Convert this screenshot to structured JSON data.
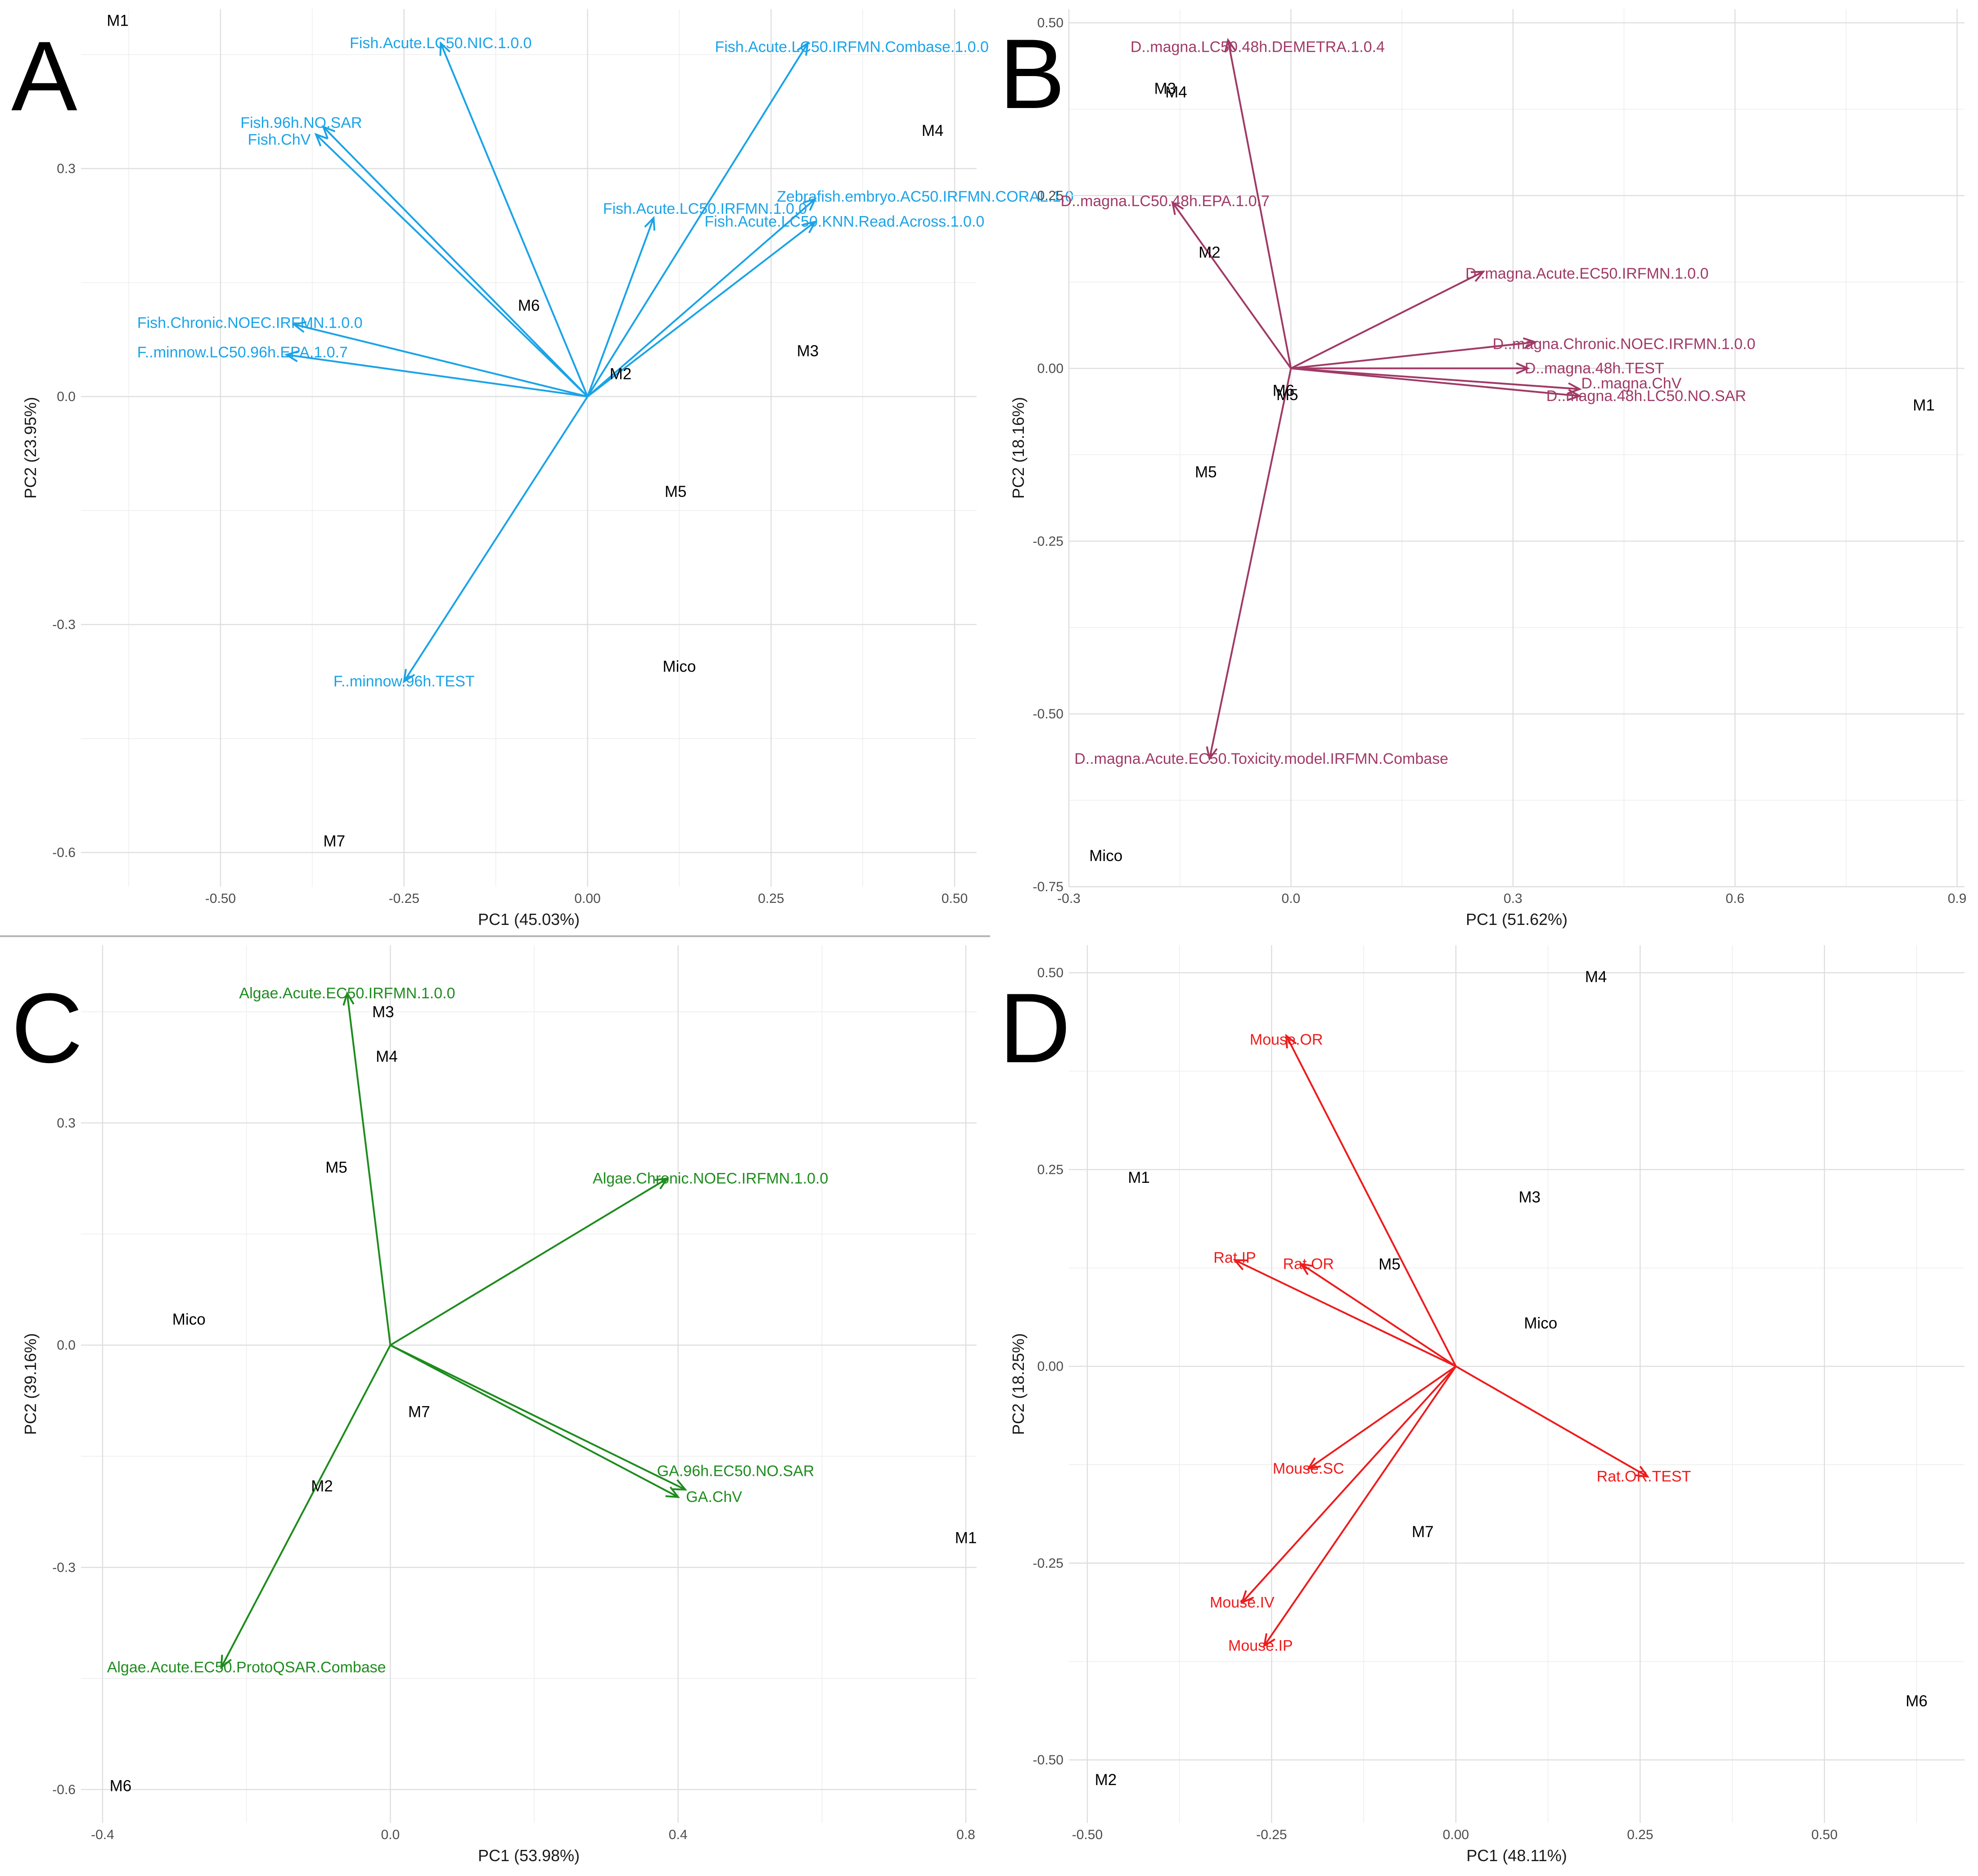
{
  "chart_data": [
    {
      "type": "scatter",
      "panel_label": "A",
      "xlabel": "PC1 (45.03%)",
      "ylabel": "PC2 (23.95%)",
      "xlim": [
        -0.69,
        0.53
      ],
      "ylim": [
        -0.645,
        0.51
      ],
      "xticks": [
        -0.5,
        -0.25,
        0.0,
        0.25,
        0.5
      ],
      "xtick_labels": [
        "-0.50",
        "-0.25",
        "0.00",
        "0.25",
        "0.50"
      ],
      "yticks": [
        -0.6,
        -0.3,
        0.0,
        0.3
      ],
      "ytick_labels": [
        "-0.6",
        "-0.3",
        "0.0",
        "0.3"
      ],
      "color": "#1aa3e8",
      "points": [
        {
          "label": "M1",
          "x": -0.64,
          "y": 0.495
        },
        {
          "label": "M4",
          "x": 0.47,
          "y": 0.35
        },
        {
          "label": "M6",
          "x": -0.08,
          "y": 0.12
        },
        {
          "label": "M2",
          "x": 0.045,
          "y": 0.03
        },
        {
          "label": "M3",
          "x": 0.3,
          "y": 0.06
        },
        {
          "label": "M5",
          "x": 0.12,
          "y": -0.125
        },
        {
          "label": "Mico",
          "x": 0.125,
          "y": -0.355
        },
        {
          "label": "M7",
          "x": -0.345,
          "y": -0.585
        }
      ],
      "arrows": [
        {
          "label": "Fish.Acute.LC50.NIC.1.0.0",
          "x": -0.2,
          "y": 0.465,
          "label_x": -0.2,
          "label_y": 0.465
        },
        {
          "label": "Fish.Acute.LC50.IRFMN.Combase.1.0.0",
          "x": 0.3,
          "y": 0.465,
          "label_x": 0.36,
          "label_y": 0.46
        },
        {
          "label": "Fish.96h.NO.SAR",
          "x": -0.36,
          "y": 0.355,
          "label_x": -0.39,
          "label_y": 0.36
        },
        {
          "label": "Fish.ChV",
          "x": -0.37,
          "y": 0.345,
          "label_x": -0.42,
          "label_y": 0.338
        },
        {
          "label": "Zebrafish.embryo.AC50.IRFMN.CORAL.1.0",
          "x": 0.31,
          "y": 0.26,
          "label_x": 0.46,
          "label_y": 0.263
        },
        {
          "label": "Fish.Acute.LC50.IRFMN.1.0.0",
          "x": 0.09,
          "y": 0.235,
          "label_x": 0.16,
          "label_y": 0.247
        },
        {
          "label": "Fish.Acute.LC50.KNN.Read.Across.1.0.0",
          "x": 0.31,
          "y": 0.23,
          "label_x": 0.35,
          "label_y": 0.23
        },
        {
          "label": "Fish.Chronic.NOEC.IRFMN.1.0.0",
          "x": -0.4,
          "y": 0.095,
          "label_x": -0.46,
          "label_y": 0.097
        },
        {
          "label": "F..minnow.LC50.96h.EPA.1.0.7",
          "x": -0.41,
          "y": 0.055,
          "label_x": -0.47,
          "label_y": 0.058
        },
        {
          "label": "F..minnow.96h.TEST",
          "x": -0.25,
          "y": -0.375,
          "label_x": -0.25,
          "label_y": -0.375
        }
      ]
    },
    {
      "type": "scatter",
      "panel_label": "B",
      "xlabel": "PC1 (51.62%)",
      "ylabel": "PC2 (18.16%)",
      "xlim": [
        -0.3,
        0.91
      ],
      "ylim": [
        -0.75,
        0.52
      ],
      "xticks": [
        -0.3,
        0.0,
        0.3,
        0.6,
        0.9
      ],
      "xtick_labels": [
        "-0.3",
        "0.0",
        "0.3",
        "0.6",
        "0.9"
      ],
      "yticks": [
        -0.75,
        -0.5,
        -0.25,
        0.0,
        0.25,
        0.5
      ],
      "ytick_labels": [
        "-0.75",
        "-0.50",
        "-0.25",
        "0.00",
        "0.25",
        "0.50"
      ],
      "color": "#a03a66",
      "points": [
        {
          "label": "M3",
          "x": -0.17,
          "y": 0.405
        },
        {
          "label": "M4",
          "x": -0.155,
          "y": 0.4
        },
        {
          "label": "M2",
          "x": -0.11,
          "y": 0.168
        },
        {
          "label": "M6",
          "x": -0.01,
          "y": -0.032
        },
        {
          "label": "M5",
          "x": -0.005,
          "y": -0.038
        },
        {
          "label": "M5",
          "x": -0.115,
          "y": -0.15
        },
        {
          "label": "M1",
          "x": 0.855,
          "y": -0.053
        },
        {
          "label": "Mico",
          "x": -0.25,
          "y": -0.705
        }
      ],
      "arrows": [
        {
          "label": "D..magna.LC50.48h.DEMETRA.1.0.4",
          "x": -0.085,
          "y": 0.475,
          "label_x": -0.045,
          "label_y": 0.465
        },
        {
          "label": "D..magna.LC50.48h.EPA.1.0.7",
          "x": -0.16,
          "y": 0.24,
          "label_x": -0.17,
          "label_y": 0.242
        },
        {
          "label": "D..magna.Acute.EC50.IRFMN.1.0.0",
          "x": 0.26,
          "y": 0.14,
          "label_x": 0.4,
          "label_y": 0.137
        },
        {
          "label": "D..magna.Chronic.NOEC.IRFMN.1.0.0",
          "x": 0.33,
          "y": 0.038,
          "label_x": 0.45,
          "label_y": 0.035
        },
        {
          "label": "D..magna.48h.TEST",
          "x": 0.32,
          "y": 0.0,
          "label_x": 0.41,
          "label_y": 0.0
        },
        {
          "label": "D..magna.ChV",
          "x": 0.39,
          "y": -0.03,
          "label_x": 0.46,
          "label_y": -0.022
        },
        {
          "label": "D..magna.48h.LC50.NO.SAR",
          "x": 0.39,
          "y": -0.04,
          "label_x": 0.48,
          "label_y": -0.04
        },
        {
          "label": "D..magna.Acute.EC50.Toxicity.model.IRFMN.Combase",
          "x": -0.11,
          "y": -0.565,
          "label_x": -0.04,
          "label_y": -0.565
        }
      ]
    },
    {
      "type": "scatter",
      "panel_label": "C",
      "xlabel": "PC1 (53.98%)",
      "ylabel": "PC2 (39.16%)",
      "xlim": [
        -0.43,
        0.815
      ],
      "ylim": [
        -0.645,
        0.54
      ],
      "xticks": [
        -0.4,
        0.0,
        0.4,
        0.8
      ],
      "xtick_labels": [
        "-0.4",
        "0.0",
        "0.4",
        "0.8"
      ],
      "yticks": [
        -0.6,
        -0.3,
        0.0,
        0.3
      ],
      "ytick_labels": [
        "-0.6",
        "-0.3",
        "0.0",
        "0.3"
      ],
      "color": "#1e8c1e",
      "points": [
        {
          "label": "M3",
          "x": -0.01,
          "y": 0.45
        },
        {
          "label": "M4",
          "x": -0.005,
          "y": 0.39
        },
        {
          "label": "M5",
          "x": -0.075,
          "y": 0.24
        },
        {
          "label": "Mico",
          "x": -0.28,
          "y": 0.035
        },
        {
          "label": "M7",
          "x": 0.04,
          "y": -0.09
        },
        {
          "label": "M2",
          "x": -0.095,
          "y": -0.19
        },
        {
          "label": "M1",
          "x": 0.8,
          "y": -0.26
        },
        {
          "label": "M6",
          "x": -0.375,
          "y": -0.595
        }
      ],
      "arrows": [
        {
          "label": "Algae.Acute.EC50.IRFMN.1.0.0",
          "x": -0.06,
          "y": 0.475,
          "label_x": -0.06,
          "label_y": 0.475
        },
        {
          "label": "Algae.Chronic.NOEC.IRFMN.1.0.0",
          "x": 0.385,
          "y": 0.225,
          "label_x": 0.445,
          "label_y": 0.225
        },
        {
          "label": "GA.96h.EC50.NO.SAR",
          "x": 0.41,
          "y": -0.195,
          "label_x": 0.48,
          "label_y": -0.17
        },
        {
          "label": "GA.ChV",
          "x": 0.4,
          "y": -0.205,
          "label_x": 0.45,
          "label_y": -0.205
        },
        {
          "label": "Algae.Acute.EC50.ProtoQSAR.Combase",
          "x": -0.235,
          "y": -0.435,
          "label_x": -0.2,
          "label_y": -0.435
        }
      ]
    },
    {
      "type": "scatter",
      "panel_label": "D",
      "xlabel": "PC1 (48.11%)",
      "ylabel": "PC2 (18.25%)",
      "xlim": [
        -0.525,
        0.69
      ],
      "ylim": [
        -0.58,
        0.535
      ],
      "xticks": [
        -0.5,
        -0.25,
        0.0,
        0.25,
        0.5
      ],
      "xtick_labels": [
        "-0.50",
        "-0.25",
        "0.00",
        "0.25",
        "0.50"
      ],
      "yticks": [
        -0.5,
        -0.25,
        0.0,
        0.25,
        0.5
      ],
      "ytick_labels": [
        "-0.50",
        "-0.25",
        "0.00",
        "0.25",
        "0.50"
      ],
      "color": "#ee1c1c",
      "points": [
        {
          "label": "M4",
          "x": 0.19,
          "y": 0.495
        },
        {
          "label": "M1",
          "x": -0.43,
          "y": 0.24
        },
        {
          "label": "M3",
          "x": 0.1,
          "y": 0.215
        },
        {
          "label": "M5",
          "x": -0.09,
          "y": 0.13
        },
        {
          "label": "Mico",
          "x": 0.115,
          "y": 0.055
        },
        {
          "label": "M7",
          "x": -0.045,
          "y": -0.21
        },
        {
          "label": "M6",
          "x": 0.625,
          "y": -0.425
        },
        {
          "label": "M2",
          "x": -0.475,
          "y": -0.525
        }
      ],
      "arrows": [
        {
          "label": "Mouse.OR",
          "x": -0.23,
          "y": 0.42,
          "label_x": -0.23,
          "label_y": 0.415
        },
        {
          "label": "Rat.IP",
          "x": -0.3,
          "y": 0.135,
          "label_x": -0.3,
          "label_y": 0.138
        },
        {
          "label": "Rat.OR",
          "x": -0.21,
          "y": 0.13,
          "label_x": -0.2,
          "label_y": 0.13
        },
        {
          "label": "Mouse.SC",
          "x": -0.2,
          "y": -0.13,
          "label_x": -0.2,
          "label_y": -0.13
        },
        {
          "label": "Rat.OR.TEST",
          "x": 0.26,
          "y": -0.14,
          "label_x": 0.255,
          "label_y": -0.14
        },
        {
          "label": "Mouse.IV",
          "x": -0.29,
          "y": -0.3,
          "label_x": -0.29,
          "label_y": -0.3
        },
        {
          "label": "Mouse.IP",
          "x": -0.26,
          "y": -0.355,
          "label_x": -0.265,
          "label_y": -0.355
        }
      ]
    }
  ]
}
